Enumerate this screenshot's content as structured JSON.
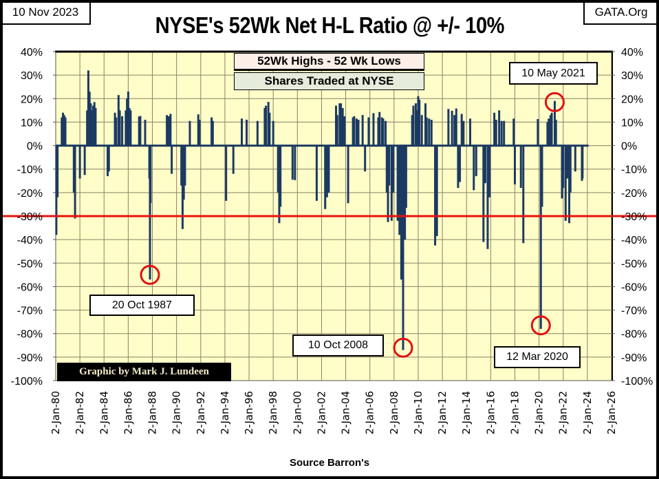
{
  "header": {
    "date": "10 Nov 2023",
    "site": "GATA.Org",
    "title": "NYSE's 52Wk Net H-L Ratio @ +/- 10%"
  },
  "legend": {
    "line1": "52Wk Highs - 52 Wk Lows",
    "line2": "Shares Traded at NYSE"
  },
  "credit": "Graphic by Mark J. Lundeen",
  "source": "Source Barron's",
  "colors": {
    "series": "#1b3a63",
    "threshold": "#e8120c",
    "plot_bg": "#fffdc8",
    "grid": "#8c8068",
    "circle": "#e01010"
  },
  "chart_data": {
    "type": "bar",
    "title": "NYSE's 52Wk Net H-L Ratio @ +/- 10%",
    "xlabel": "Source Barron's",
    "ylabel": "",
    "ylim": [
      -100,
      40
    ],
    "xlim": [
      1980,
      2026
    ],
    "grid": true,
    "y_ticks": [
      "40%",
      "30%",
      "20%",
      "10%",
      "0%",
      "-10%",
      "-20%",
      "-30%",
      "-40%",
      "-50%",
      "-60%",
      "-70%",
      "-80%",
      "-90%",
      "-100%"
    ],
    "y_tick_values": [
      40,
      30,
      20,
      10,
      0,
      -10,
      -20,
      -30,
      -40,
      -50,
      -60,
      -70,
      -80,
      -90,
      -100
    ],
    "x_ticks": [
      "2-Jan-80",
      "2-Jan-82",
      "2-Jan-84",
      "2-Jan-86",
      "2-Jan-88",
      "2-Jan-90",
      "2-Jan-92",
      "2-Jan-94",
      "2-Jan-96",
      "2-Jan-98",
      "2-Jan-00",
      "2-Jan-02",
      "2-Jan-04",
      "2-Jan-06",
      "2-Jan-08",
      "2-Jan-10",
      "2-Jan-12",
      "2-Jan-14",
      "2-Jan-16",
      "2-Jan-18",
      "2-Jan-20",
      "2-Jan-22",
      "2-Jan-24",
      "2-Jan-26"
    ],
    "x_tick_values": [
      1980,
      1982,
      1984,
      1986,
      1988,
      1990,
      1992,
      1994,
      1996,
      1998,
      2000,
      2002,
      2004,
      2006,
      2008,
      2010,
      2012,
      2014,
      2016,
      2018,
      2020,
      2022,
      2024,
      2026
    ],
    "threshold": -30,
    "series_end": 2024.1,
    "series": [
      {
        "name": "52Wk Highs - 52 Wk Lows / Shares Traded at NYSE",
        "points": [
          [
            1980.05,
            -38
          ],
          [
            1980.15,
            -22
          ],
          [
            1980.5,
            12
          ],
          [
            1980.6,
            14
          ],
          [
            1980.7,
            13
          ],
          [
            1980.8,
            12
          ],
          [
            1981.5,
            -20
          ],
          [
            1981.6,
            -31
          ],
          [
            1982.0,
            -14
          ],
          [
            1982.4,
            -12.5
          ],
          [
            1982.6,
            15
          ],
          [
            1982.7,
            32
          ],
          [
            1982.8,
            23
          ],
          [
            1982.9,
            18
          ],
          [
            1983.0,
            15
          ],
          [
            1983.1,
            17
          ],
          [
            1983.2,
            18.5
          ],
          [
            1983.3,
            16
          ],
          [
            1984.3,
            -13
          ],
          [
            1984.4,
            -11
          ],
          [
            1984.9,
            14
          ],
          [
            1985.0,
            12
          ],
          [
            1985.2,
            21.5
          ],
          [
            1985.3,
            15
          ],
          [
            1985.5,
            12.5
          ],
          [
            1985.8,
            15
          ],
          [
            1985.9,
            20
          ],
          [
            1986.0,
            23
          ],
          [
            1986.1,
            16
          ],
          [
            1986.2,
            15
          ],
          [
            1986.9,
            12.4
          ],
          [
            1987.0,
            12.6
          ],
          [
            1987.4,
            11
          ],
          [
            1987.75,
            -14
          ],
          [
            1987.8,
            -57
          ],
          [
            1987.85,
            -24.5
          ],
          [
            1989.2,
            13
          ],
          [
            1989.35,
            12.5
          ],
          [
            1989.5,
            13.5
          ],
          [
            1989.6,
            -12
          ],
          [
            1990.4,
            -17
          ],
          [
            1990.5,
            -35.5
          ],
          [
            1990.6,
            -23
          ],
          [
            1990.7,
            -17
          ],
          [
            1991.1,
            10.5
          ],
          [
            1991.8,
            13.3
          ],
          [
            1991.9,
            11
          ],
          [
            1992.9,
            12
          ],
          [
            1993.0,
            10.5
          ],
          [
            1994.1,
            -23.5
          ],
          [
            1994.7,
            -12
          ],
          [
            1995.4,
            11.5
          ],
          [
            1995.8,
            11
          ],
          [
            1996.7,
            10.5
          ],
          [
            1997.3,
            16
          ],
          [
            1997.4,
            17
          ],
          [
            1997.6,
            18.6
          ],
          [
            1997.7,
            14
          ],
          [
            1998.0,
            10.5
          ],
          [
            1998.4,
            -20
          ],
          [
            1998.5,
            -33
          ],
          [
            1998.6,
            -26
          ],
          [
            1999.6,
            -14.5
          ],
          [
            1999.8,
            -14.7
          ],
          [
            2001.6,
            -23.5
          ],
          [
            2002.3,
            -27
          ],
          [
            2002.45,
            -22
          ],
          [
            2002.6,
            -20
          ],
          [
            2003.2,
            17
          ],
          [
            2003.3,
            13
          ],
          [
            2003.5,
            18
          ],
          [
            2003.6,
            18
          ],
          [
            2003.75,
            16
          ],
          [
            2003.9,
            12.5
          ],
          [
            2004.2,
            -24.5
          ],
          [
            2004.6,
            12
          ],
          [
            2004.7,
            12.5
          ],
          [
            2004.9,
            11.5
          ],
          [
            2005.05,
            11
          ],
          [
            2005.4,
            13
          ],
          [
            2005.6,
            -11
          ],
          [
            2005.9,
            12
          ],
          [
            2006.3,
            13.8
          ],
          [
            2006.7,
            12
          ],
          [
            2006.8,
            14.3
          ],
          [
            2007.0,
            12
          ],
          [
            2007.1,
            11.5
          ],
          [
            2007.3,
            10.5
          ],
          [
            2007.4,
            -20
          ],
          [
            2007.5,
            -32.5
          ],
          [
            2007.6,
            -17
          ],
          [
            2007.8,
            -32
          ],
          [
            2007.95,
            -20
          ],
          [
            2008.3,
            -32
          ],
          [
            2008.45,
            -38
          ],
          [
            2008.6,
            -57
          ],
          [
            2008.75,
            -87
          ],
          [
            2008.9,
            -40
          ],
          [
            2009.0,
            -26.5
          ],
          [
            2009.5,
            13
          ],
          [
            2009.6,
            17
          ],
          [
            2009.8,
            18
          ],
          [
            2009.9,
            15
          ],
          [
            2010.0,
            21
          ],
          [
            2010.1,
            19.5
          ],
          [
            2010.3,
            13
          ],
          [
            2010.6,
            18
          ],
          [
            2010.7,
            12
          ],
          [
            2010.9,
            11.5
          ],
          [
            2011.1,
            11
          ],
          [
            2011.4,
            -42.5
          ],
          [
            2011.55,
            -38.5
          ],
          [
            2012.5,
            15.6
          ],
          [
            2012.8,
            14.8
          ],
          [
            2013.0,
            13
          ],
          [
            2013.15,
            15.8
          ],
          [
            2013.3,
            -18
          ],
          [
            2013.45,
            -15.5
          ],
          [
            2013.6,
            13.5
          ],
          [
            2013.75,
            10.5
          ],
          [
            2014.3,
            11.5
          ],
          [
            2014.6,
            -19
          ],
          [
            2014.8,
            -13
          ],
          [
            2015.4,
            -41
          ],
          [
            2015.55,
            -16
          ],
          [
            2015.75,
            -44
          ],
          [
            2015.9,
            -22
          ],
          [
            2016.3,
            14
          ],
          [
            2016.45,
            11
          ],
          [
            2016.7,
            15
          ],
          [
            2016.9,
            10.5
          ],
          [
            2017.1,
            10.5
          ],
          [
            2017.9,
            11.5
          ],
          [
            2018.0,
            -16.5
          ],
          [
            2018.5,
            -18
          ],
          [
            2018.7,
            -41.5
          ],
          [
            2019.9,
            11.3
          ],
          [
            2020.15,
            -78
          ],
          [
            2020.25,
            -26
          ],
          [
            2020.7,
            10
          ],
          [
            2020.8,
            11.5
          ],
          [
            2020.95,
            13
          ],
          [
            2021.05,
            14
          ],
          [
            2021.3,
            19
          ],
          [
            2021.4,
            11
          ],
          [
            2021.9,
            -22.5
          ],
          [
            2022.0,
            -18
          ],
          [
            2022.2,
            -32
          ],
          [
            2022.35,
            -14
          ],
          [
            2022.5,
            -33
          ],
          [
            2022.6,
            -20
          ],
          [
            2023.0,
            -11
          ],
          [
            2023.55,
            -15
          ],
          [
            2023.6,
            -14
          ]
        ]
      }
    ],
    "annotations": [
      {
        "label": "20 Oct 1987",
        "x": 1987.8,
        "y": -55
      },
      {
        "label": "10 Oct 2008",
        "x": 2008.75,
        "y": -86
      },
      {
        "label": "12 Mar 2020",
        "x": 2020.15,
        "y": -76.5
      },
      {
        "label": "10 May 2021",
        "x": 2021.3,
        "y": 18.5
      }
    ]
  }
}
